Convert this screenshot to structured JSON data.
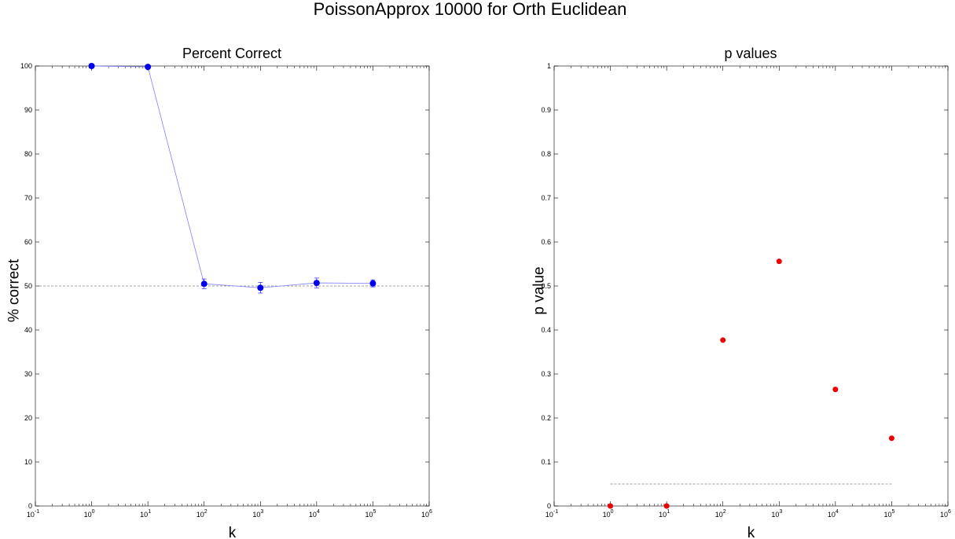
{
  "figure": {
    "suptitle": "PoissonApprox 10000 for Orth Euclidean"
  },
  "colors": {
    "series_left": "#0000ee",
    "line_left": "#8080ff",
    "series_right": "#ee0000",
    "reference": "#808080",
    "frame": "#000000"
  },
  "chart_data": [
    {
      "type": "line",
      "title": "Percent Correct",
      "xlabel": "k",
      "ylabel": "% correct",
      "xscale": "log",
      "xlim": [
        0.1,
        1000000
      ],
      "ylim": [
        0,
        100
      ],
      "xticks": [
        0.1,
        1,
        10,
        100,
        1000,
        10000,
        100000,
        1000000
      ],
      "xtick_labels": [
        {
          "base": "10",
          "exp": "-1"
        },
        {
          "base": "10",
          "exp": "0"
        },
        {
          "base": "10",
          "exp": "1"
        },
        {
          "base": "10",
          "exp": "2"
        },
        {
          "base": "10",
          "exp": "3"
        },
        {
          "base": "10",
          "exp": "4"
        },
        {
          "base": "10",
          "exp": "5"
        },
        {
          "base": "10",
          "exp": "6"
        }
      ],
      "yticks": [
        0,
        10,
        20,
        30,
        40,
        50,
        60,
        70,
        80,
        90,
        100
      ],
      "ytick_labels": [
        "0",
        "10",
        "20",
        "30",
        "40",
        "50",
        "60",
        "70",
        "80",
        "90",
        "100"
      ],
      "series": [
        {
          "x": [
            1,
            10,
            100,
            1000,
            10000,
            100000
          ],
          "y": [
            100,
            99.8,
            50.5,
            49.6,
            50.7,
            50.6
          ],
          "yerr": [
            0.1,
            0.2,
            1.1,
            1.2,
            1.1,
            0.8
          ],
          "marker": "circle",
          "line": true
        }
      ],
      "reference_line": {
        "y": 50,
        "style": "dashed",
        "x_range": "full"
      },
      "grid": false
    },
    {
      "type": "scatter",
      "title": "p values",
      "xlabel": "k",
      "ylabel": "p value",
      "xscale": "log",
      "xlim": [
        0.1,
        1000000
      ],
      "ylim": [
        0,
        1
      ],
      "xticks": [
        0.1,
        1,
        10,
        100,
        1000,
        10000,
        100000,
        1000000
      ],
      "xtick_labels": [
        {
          "base": "10",
          "exp": "-1"
        },
        {
          "base": "10",
          "exp": "0"
        },
        {
          "base": "10",
          "exp": "1"
        },
        {
          "base": "10",
          "exp": "2"
        },
        {
          "base": "10",
          "exp": "3"
        },
        {
          "base": "10",
          "exp": "4"
        },
        {
          "base": "10",
          "exp": "5"
        },
        {
          "base": "10",
          "exp": "6"
        }
      ],
      "yticks": [
        0,
        0.1,
        0.2,
        0.3,
        0.4,
        0.5,
        0.6,
        0.7,
        0.8,
        0.9,
        1
      ],
      "ytick_labels": [
        "0",
        "0.1",
        "0.2",
        "0.3",
        "0.4",
        "0.5",
        "0.6",
        "0.7",
        "0.8",
        "0.9",
        "1"
      ],
      "series": [
        {
          "x": [
            1,
            10,
            100,
            1000,
            10000,
            100000
          ],
          "y": [
            0,
            0,
            0.377,
            0.556,
            0.265,
            0.154
          ],
          "marker": "circle",
          "line": false
        }
      ],
      "reference_line": {
        "y": 0.05,
        "style": "dashed",
        "x_range": [
          1,
          100000
        ]
      },
      "grid": false
    }
  ]
}
